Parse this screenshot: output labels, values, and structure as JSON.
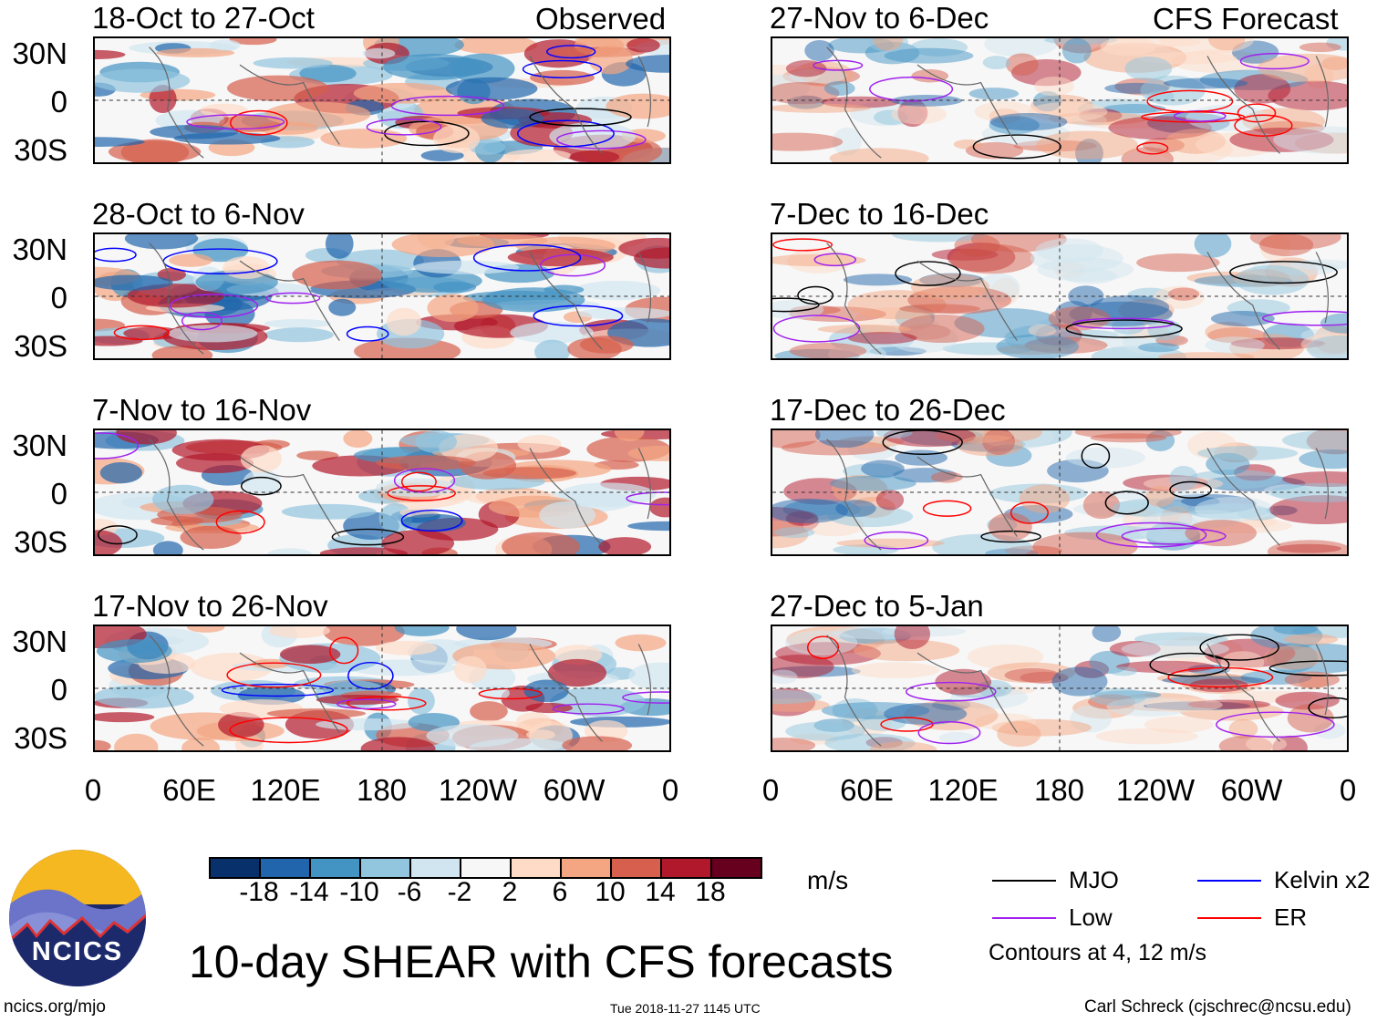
{
  "headers": {
    "left": "Observed",
    "right": "CFS Forecast"
  },
  "panels_left": [
    "18-Oct to 27-Oct",
    "28-Oct to 6-Nov",
    "7-Nov to 16-Nov",
    "17-Nov to 26-Nov"
  ],
  "panels_right": [
    "27-Nov to 6-Dec",
    "7-Dec to 16-Dec",
    "17-Dec to 26-Dec",
    "27-Dec to 5-Jan"
  ],
  "lat_labels": [
    "30N",
    "0",
    "30S"
  ],
  "lon_labels": [
    "0",
    "60E",
    "120E",
    "180",
    "120W",
    "60W",
    "0"
  ],
  "colorbar": {
    "labels": [
      "-18",
      "-14",
      "-10",
      "-6",
      "-2",
      "2",
      "6",
      "10",
      "14",
      "18"
    ],
    "colors": [
      "#08306b",
      "#2166ac",
      "#4393c3",
      "#92c5de",
      "#d1e5f0",
      "#f7f7f7",
      "#fddbc7",
      "#f4a582",
      "#d6604d",
      "#b2182b",
      "#67001f"
    ],
    "units": "m/s"
  },
  "legend": {
    "items": [
      {
        "label": "MJO",
        "color": "#000000"
      },
      {
        "label": "Kelvin x2",
        "color": "#0000ff"
      },
      {
        "label": "Low",
        "color": "#a020f0"
      },
      {
        "label": "ER",
        "color": "#ff0000"
      }
    ],
    "note": "Contours at 4, 12 m/s"
  },
  "title": "10-day SHEAR with CFS forecasts",
  "logo_text": "NCICS",
  "url": "ncics.org/mjo",
  "timestamp": "Tue 2018-11-27 1145 UTC",
  "credit": "Carl Schreck (cjschrec@ncsu.edu)"
}
